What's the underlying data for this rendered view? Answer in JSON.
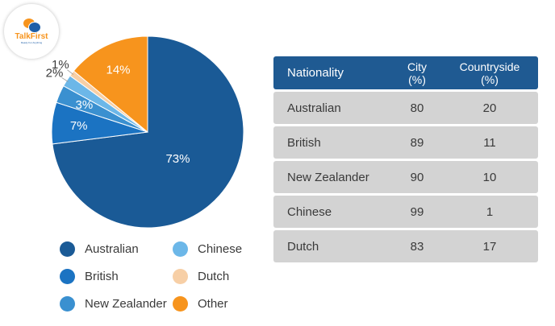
{
  "logo": {
    "name": "TalkFirst",
    "tagline": "Ready For Anything"
  },
  "colors": {
    "Australian": "#1a5a96",
    "British": "#1b73c2",
    "New Zealander": "#3a90d0",
    "Chinese": "#6cb7e8",
    "Dutch": "#f7cfa6",
    "Other": "#f7941d"
  },
  "chart_data": [
    {
      "type": "pie",
      "slices": [
        {
          "label": "Australian",
          "value": 73,
          "display": "73%"
        },
        {
          "label": "British",
          "value": 7,
          "display": "7%"
        },
        {
          "label": "New Zealander",
          "value": 3,
          "display": "3%"
        },
        {
          "label": "Chinese",
          "value": 2,
          "display": "2%"
        },
        {
          "label": "Dutch",
          "value": 1,
          "display": "1%"
        },
        {
          "label": "Other",
          "value": 14,
          "display": "14%"
        }
      ],
      "legend": [
        "Australian",
        "Chinese",
        "British",
        "Dutch",
        "New Zealander",
        "Other"
      ],
      "legend_placement": "bottom"
    },
    {
      "type": "table",
      "columns": [
        "Nationality",
        "City (%)",
        "Countryside (%)"
      ],
      "rows": [
        {
          "nationality": "Australian",
          "city": 80,
          "countryside": 20
        },
        {
          "nationality": "British",
          "city": 89,
          "countryside": 11
        },
        {
          "nationality": "New Zealander",
          "city": 90,
          "countryside": 10
        },
        {
          "nationality": "Chinese",
          "city": 99,
          "countryside": 1
        },
        {
          "nationality": "Dutch",
          "city": 83,
          "countryside": 17
        }
      ]
    }
  ],
  "table": {
    "header": {
      "nationality": "Nationality",
      "city_line1": "City",
      "city_line2": "(%)",
      "countryside_line1": "Countryside",
      "countryside_line2": "(%)"
    }
  }
}
